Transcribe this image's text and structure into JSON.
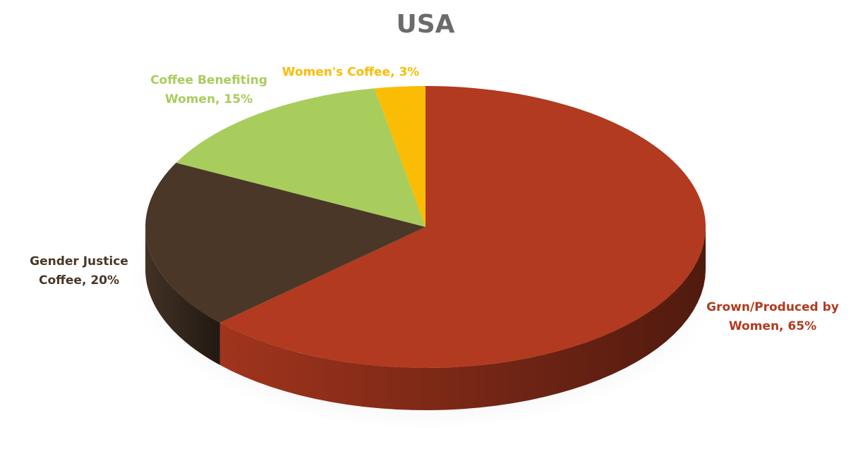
{
  "chart_data": {
    "type": "pie",
    "title": "USA",
    "values": [
      65,
      20,
      15,
      3
    ],
    "value_labels": [
      "Grown/Produced by Women, 65%",
      "Gender Justice Coffee, 20%",
      "Coffee Benefiting Women, 15%",
      "Women's Coffee, 3%"
    ],
    "colors": [
      "#b23a20",
      "#4a3728",
      "#a8cd5c",
      "#fbbc05"
    ]
  }
}
